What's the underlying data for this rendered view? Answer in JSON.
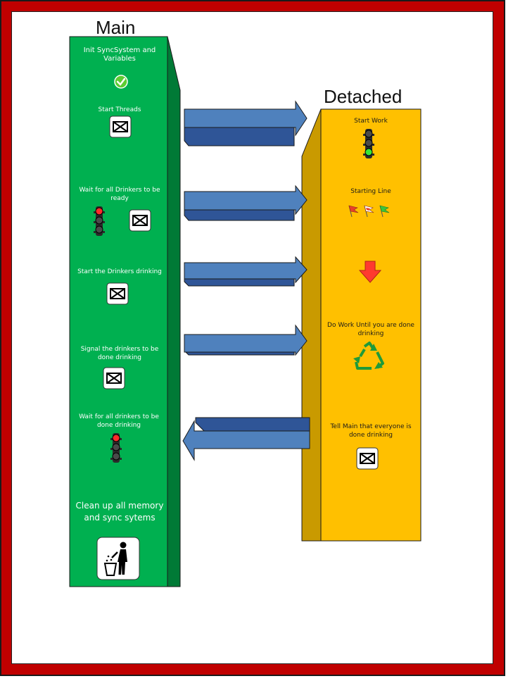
{
  "main_column": {
    "title": "Main",
    "steps": [
      {
        "label": "Init SyncSystem and Variables",
        "icon": "check-icon"
      },
      {
        "label": "Start Threads",
        "icon": "envelope-icon"
      },
      {
        "label": "Wait for all Drinkers to be ready",
        "icon": "traffic-light-red-icon,envelope-icon"
      },
      {
        "label": "Start the Drinkers drinking",
        "icon": "envelope-icon"
      },
      {
        "label": "Signal the drinkers to be done drinking",
        "icon": "envelope-icon"
      },
      {
        "label": "Wait for all drinkers to be done drinking",
        "icon": "traffic-light-red-icon"
      },
      {
        "label": "Clean up all memory and sync sytems",
        "icon": "trash-icon"
      }
    ]
  },
  "detached_column": {
    "title": "Detached",
    "steps": [
      {
        "label": "Start Work",
        "icon": "traffic-light-green-icon"
      },
      {
        "label": "Starting Line",
        "icon": "flags-icon"
      },
      {
        "label": "",
        "icon": "down-arrow-icon"
      },
      {
        "label": "Do Work Until  you are done drinking",
        "icon": "recycle-icon"
      },
      {
        "label": "Tell Main that everyone is done drinking",
        "icon": "envelope-icon"
      }
    ]
  },
  "colors": {
    "frame": "#c00000",
    "main_face": "#00b050",
    "main_side": "#007a36",
    "detached_face": "#ffc000",
    "detached_side": "#c99a00",
    "arrow_face": "#4f81bd",
    "arrow_side": "#2f5597"
  }
}
